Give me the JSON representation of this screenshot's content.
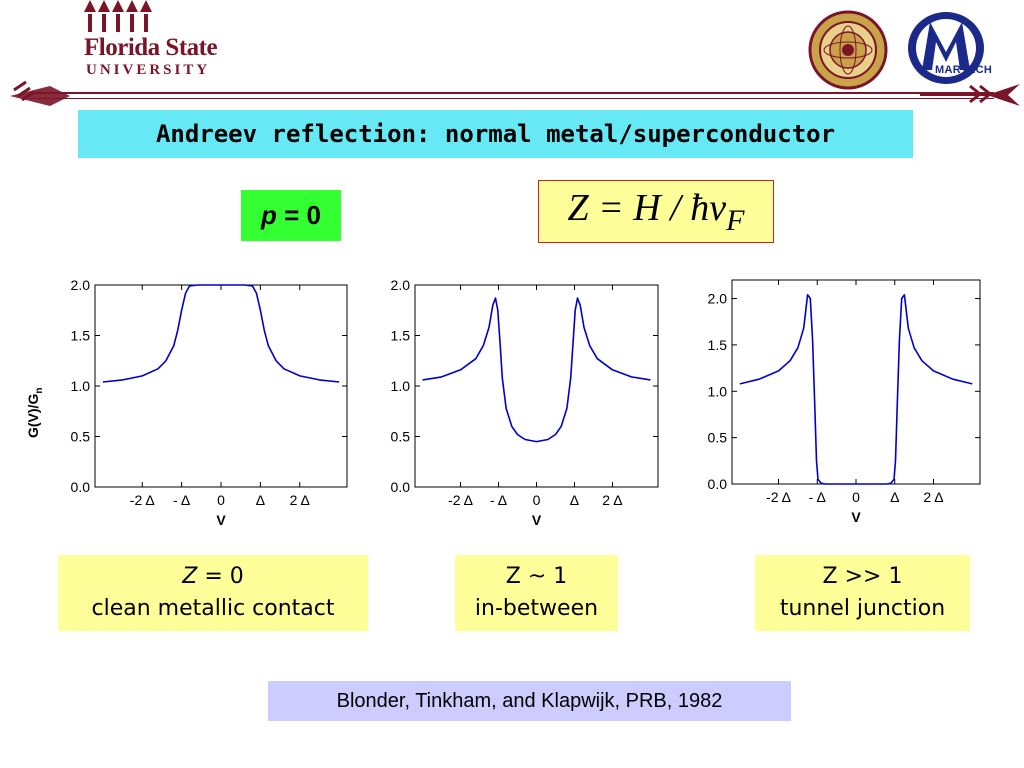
{
  "header": {
    "fsu_line1": "Florida State",
    "fsu_line2": "UNIVERSITY",
    "martech_label": "MARTECH",
    "accent_color": "#7a1428"
  },
  "slide": {
    "title": "Andreev reflection: normal metal/superconductor",
    "p_label_var": "p",
    "p_label_rest": " = 0",
    "z_formula_main": "Z = H / ħv",
    "z_formula_sub": "F",
    "captions": [
      {
        "line1_var": "Z",
        "line1_rest": " = 0",
        "line2": "clean metallic contact"
      },
      {
        "line1_var": "",
        "line1_rest": "Z ~ 1",
        "line2": "in-between"
      },
      {
        "line1_var": "",
        "line1_rest": "Z >> 1",
        "line2": "tunnel junction"
      }
    ],
    "citation": "Blonder, Tinkham, and Klapwijk, PRB, 1982"
  },
  "chart_data": [
    {
      "type": "line",
      "title": "",
      "xlabel": "V",
      "ylabel": "G(V)/Gn",
      "xlim": [
        -3.2,
        3.2
      ],
      "ylim": [
        0,
        2.0
      ],
      "x_ticks": [
        {
          "value": -2,
          "label": "-2 Δ"
        },
        {
          "value": -1,
          "label": "- Δ"
        },
        {
          "value": 0,
          "label": "0"
        },
        {
          "value": 1,
          "label": "Δ"
        },
        {
          "value": 2,
          "label": "2 Δ"
        }
      ],
      "y_ticks": [
        "0.0",
        "0.5",
        "1.0",
        "1.5",
        "2.0"
      ],
      "series": [
        {
          "color": "#0000cc",
          "x": [
            -3.0,
            -2.5,
            -2.0,
            -1.6,
            -1.4,
            -1.2,
            -1.1,
            -1.0,
            -0.9,
            -0.8,
            -0.6,
            0.0,
            0.6,
            0.8,
            0.9,
            1.0,
            1.1,
            1.2,
            1.4,
            1.6,
            2.0,
            2.5,
            3.0
          ],
          "y": [
            1.04,
            1.06,
            1.1,
            1.17,
            1.25,
            1.4,
            1.55,
            1.75,
            1.92,
            1.99,
            2.0,
            2.0,
            2.0,
            1.99,
            1.92,
            1.75,
            1.55,
            1.4,
            1.25,
            1.17,
            1.1,
            1.06,
            1.04
          ]
        }
      ]
    },
    {
      "type": "line",
      "title": "",
      "xlabel": "V",
      "ylabel": "",
      "xlim": [
        -3.2,
        3.2
      ],
      "ylim": [
        0,
        2.0
      ],
      "x_ticks": [
        {
          "value": -2,
          "label": "-2 Δ"
        },
        {
          "value": -1,
          "label": "- Δ"
        },
        {
          "value": 0,
          "label": "0"
        },
        {
          "value": 1,
          "label": "Δ"
        },
        {
          "value": 2,
          "label": "2 Δ"
        }
      ],
      "y_ticks": [
        "0.0",
        "0.5",
        "1.0",
        "1.5",
        "2.0"
      ],
      "series": [
        {
          "color": "#0000cc",
          "x": [
            -3.0,
            -2.5,
            -2.0,
            -1.6,
            -1.4,
            -1.25,
            -1.15,
            -1.08,
            -1.02,
            -0.96,
            -0.9,
            -0.8,
            -0.65,
            -0.5,
            -0.3,
            0.0,
            0.3,
            0.5,
            0.65,
            0.8,
            0.9,
            0.96,
            1.02,
            1.08,
            1.15,
            1.25,
            1.4,
            1.6,
            2.0,
            2.5,
            3.0
          ],
          "y": [
            1.06,
            1.09,
            1.16,
            1.27,
            1.4,
            1.58,
            1.8,
            1.87,
            1.75,
            1.42,
            1.08,
            0.78,
            0.6,
            0.52,
            0.47,
            0.45,
            0.47,
            0.52,
            0.6,
            0.78,
            1.08,
            1.42,
            1.75,
            1.87,
            1.8,
            1.58,
            1.4,
            1.27,
            1.16,
            1.09,
            1.06
          ]
        }
      ]
    },
    {
      "type": "line",
      "title": "",
      "xlabel": "V",
      "ylabel": "",
      "xlim": [
        -3.2,
        3.2
      ],
      "ylim": [
        0,
        2.2
      ],
      "x_ticks": [
        {
          "value": -2,
          "label": "-2 Δ"
        },
        {
          "value": -1,
          "label": "- Δ"
        },
        {
          "value": 0,
          "label": "0"
        },
        {
          "value": 1,
          "label": "Δ"
        },
        {
          "value": 2,
          "label": "2 Δ"
        }
      ],
      "y_ticks": [
        "0.0",
        "0.5",
        "1.0",
        "1.5",
        "2.0"
      ],
      "series": [
        {
          "color": "#0000cc",
          "x": [
            -3.0,
            -2.5,
            -2.0,
            -1.7,
            -1.5,
            -1.35,
            -1.25,
            -1.18,
            -1.12,
            -1.06,
            -1.02,
            -0.98,
            -0.9,
            -0.8,
            -0.6,
            0.0,
            0.6,
            0.8,
            0.9,
            0.98,
            1.02,
            1.06,
            1.12,
            1.18,
            1.25,
            1.35,
            1.5,
            1.7,
            2.0,
            2.5,
            3.0
          ],
          "y": [
            1.08,
            1.13,
            1.22,
            1.33,
            1.47,
            1.68,
            2.04,
            2.0,
            1.55,
            0.8,
            0.25,
            0.05,
            0.01,
            0.0,
            0.0,
            0.0,
            0.0,
            0.0,
            0.01,
            0.05,
            0.25,
            0.8,
            1.55,
            2.0,
            2.04,
            1.68,
            1.47,
            1.33,
            1.22,
            1.13,
            1.08
          ]
        }
      ]
    }
  ]
}
